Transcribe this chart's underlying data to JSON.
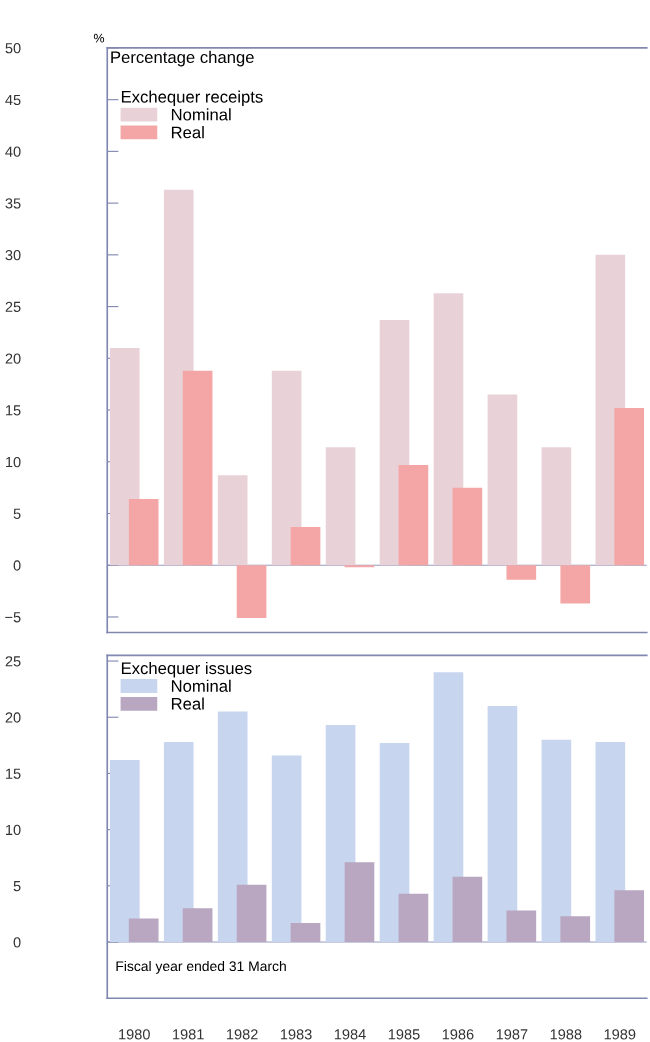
{
  "chart_data": [
    {
      "type": "bar",
      "title": "Percentage change",
      "ylabel": "%",
      "legend_title": "Exchequer receipts",
      "legend": "top left",
      "tick_labels": "y",
      "categories": [
        "1980",
        "1981",
        "1982",
        "1983",
        "1984",
        "1985",
        "1986",
        "1987",
        "1988",
        "1989"
      ],
      "series": [
        {
          "name": "Nominal",
          "color": "#e8d2d8",
          "values": [
            21.0,
            36.3,
            8.7,
            18.8,
            11.4,
            23.7,
            26.3,
            16.5,
            11.4,
            30.0
          ]
        },
        {
          "name": "Real",
          "color": "#f4a5a5",
          "values": [
            6.4,
            18.8,
            -5.1,
            3.7,
            -0.2,
            9.7,
            7.5,
            -1.4,
            -3.7,
            15.2
          ]
        }
      ],
      "ref_lines": [
        {
          "axis": "y",
          "value": 0,
          "color": "#8088b0"
        }
      ],
      "ylim": [
        -6.5,
        50
      ],
      "yticks": [
        {
          "value": -5,
          "label": "−5"
        },
        0,
        5,
        10,
        15,
        20,
        25,
        30,
        35,
        40,
        45,
        50
      ]
    },
    {
      "type": "bar",
      "legend_title": "Exchequer issues",
      "legend": "top left",
      "annotations": [
        "Fiscal year ended 31 March"
      ],
      "categories": [
        "1980",
        "1981",
        "1982",
        "1983",
        "1984",
        "1985",
        "1986",
        "1987",
        "1988",
        "1989"
      ],
      "series": [
        {
          "name": "Nominal",
          "color": "#c8d5ef",
          "values": [
            16.2,
            17.8,
            20.5,
            16.6,
            19.3,
            17.7,
            24.0,
            21.0,
            18.0,
            17.8
          ]
        },
        {
          "name": "Real",
          "color": "#b9a6c0",
          "values": [
            2.1,
            3.0,
            5.1,
            1.7,
            7.1,
            4.3,
            5.8,
            2.8,
            2.3,
            4.6
          ]
        }
      ],
      "ref_lines": [
        {
          "axis": "y",
          "value": 0,
          "color": "#8088b0"
        }
      ],
      "ylim": [
        -5,
        25.5
      ],
      "yticks": [
        0,
        5,
        10,
        15,
        20,
        25
      ]
    }
  ]
}
